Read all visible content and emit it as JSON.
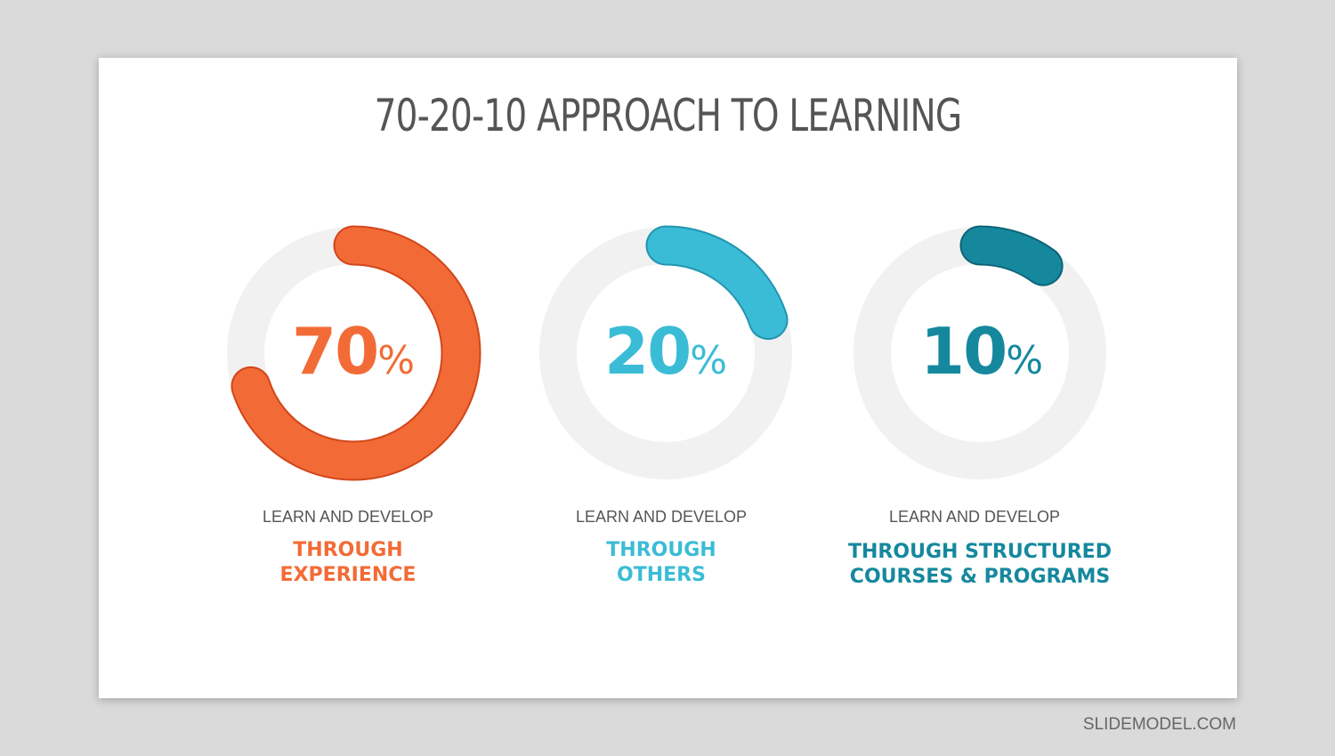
{
  "title": "70-20-10 APPROACH TO LEARNING",
  "items": [
    {
      "value": 70,
      "number": "70",
      "symbol": "%",
      "label": "LEARN AND DEVELOP",
      "line1": "THROUGH",
      "line2": "EXPERIENCE",
      "color": "#f26b36",
      "outline": "#d2461a"
    },
    {
      "value": 20,
      "number": "20",
      "symbol": "%",
      "label": "LEARN AND DEVELOP",
      "line1": "THROUGH",
      "line2": "OTHERS",
      "color": "#3bbcd6",
      "outline": "#2295b0"
    },
    {
      "value": 10,
      "number": "10",
      "symbol": "%",
      "label": "LEARN AND DEVELOP",
      "line1": "THROUGH STRUCTURED",
      "line2": "COURSES & PROGRAMS",
      "color": "#15889e",
      "outline": "#0d6478"
    }
  ],
  "track_color": "#f1f1f1",
  "footer": "SLIDEMODEL.COM"
}
